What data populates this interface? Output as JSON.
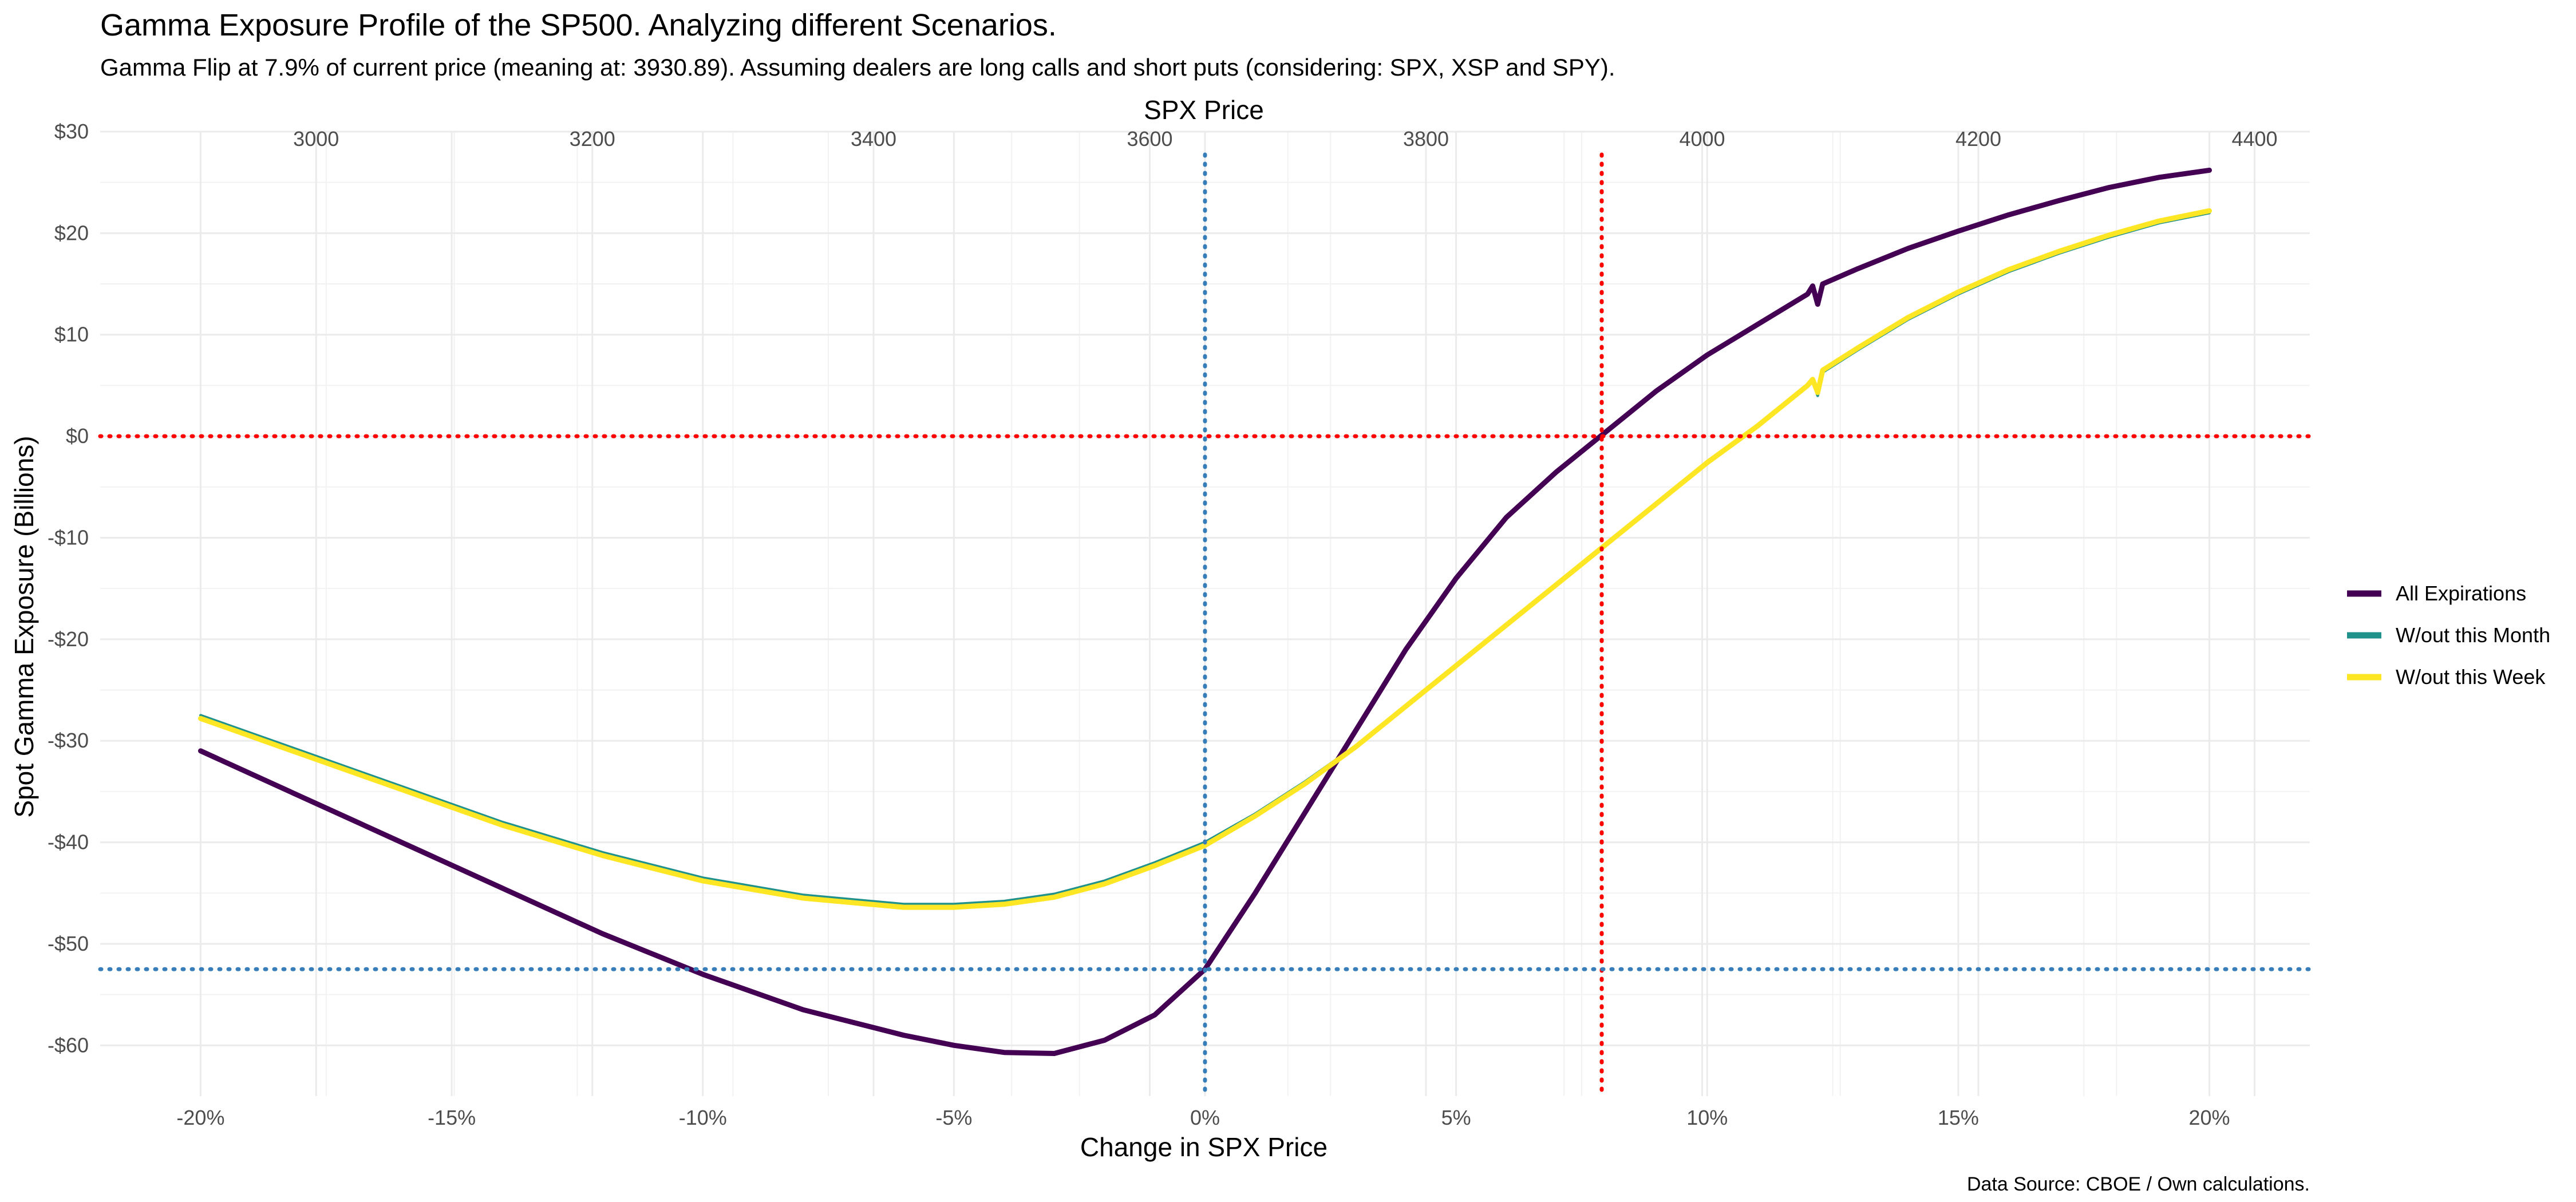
{
  "chart_data": {
    "type": "line",
    "title": "Gamma Exposure Profile of the SP500. Analyzing different Scenarios.",
    "subtitle": "Gamma Flip at 7.9% of current price (meaning at: 3930.89). Assuming dealers are long calls and short puts (considering: SPX, XSP and SPY).",
    "xlabel": "Change in SPX Price",
    "x2label": "SPX Price",
    "ylabel": "Spot Gamma Exposure (Billions)",
    "caption": "Data Source: CBOE / Own calculations.",
    "xlim": [
      -22,
      22
    ],
    "ylim": [
      -65,
      30
    ],
    "x2_ticks": [
      {
        "pct": -17.7,
        "label": "3000"
      },
      {
        "pct": -12.2,
        "label": "3200"
      },
      {
        "pct": -6.6,
        "label": "3400"
      },
      {
        "pct": -1.1,
        "label": "3600"
      },
      {
        "pct": 4.4,
        "label": "3800"
      },
      {
        "pct": 9.9,
        "label": "4000"
      },
      {
        "pct": 15.4,
        "label": "4200"
      },
      {
        "pct": 20.9,
        "label": "4400"
      }
    ],
    "x_ticks": [
      {
        "value": -20,
        "label": "-20%"
      },
      {
        "value": -15,
        "label": "-15%"
      },
      {
        "value": -10,
        "label": "-10%"
      },
      {
        "value": -5,
        "label": "-5%"
      },
      {
        "value": 0,
        "label": "0%"
      },
      {
        "value": 5,
        "label": "5%"
      },
      {
        "value": 10,
        "label": "10%"
      },
      {
        "value": 15,
        "label": "15%"
      },
      {
        "value": 20,
        "label": "20%"
      }
    ],
    "y_ticks": [
      {
        "value": 30,
        "label": "$30"
      },
      {
        "value": 20,
        "label": "$20"
      },
      {
        "value": 10,
        "label": "$10"
      },
      {
        "value": 0,
        "label": "$0"
      },
      {
        "value": -10,
        "label": "-$10"
      },
      {
        "value": -20,
        "label": "-$20"
      },
      {
        "value": -30,
        "label": "-$30"
      },
      {
        "value": -40,
        "label": "-$40"
      },
      {
        "value": -50,
        "label": "-$50"
      },
      {
        "value": -60,
        "label": "-$60"
      }
    ],
    "reference_lines": [
      {
        "axis": "x",
        "value": 0,
        "color": "#377EB8"
      },
      {
        "axis": "x",
        "value": 7.9,
        "color": "#FF0000"
      },
      {
        "axis": "y",
        "value": 0,
        "color": "#FF0000"
      },
      {
        "axis": "y",
        "value": -52.5,
        "color": "#377EB8"
      }
    ],
    "legend_position": "right",
    "series": [
      {
        "name": "All Expirations",
        "color": "#440154",
        "x": [
          -20,
          -18,
          -16,
          -14,
          -12,
          -10,
          -8,
          -6,
          -5,
          -4,
          -3,
          -2,
          -1,
          0,
          1,
          2,
          3,
          4,
          5,
          6,
          7,
          8,
          9,
          10,
          11,
          12,
          12.1,
          12.2,
          12.3,
          13,
          14,
          15,
          16,
          17,
          18,
          19,
          20
        ],
        "y": [
          -31,
          -35.5,
          -40,
          -44.5,
          -49,
          -53,
          -56.5,
          -59,
          -60,
          -60.7,
          -60.8,
          -59.5,
          -57,
          -52.5,
          -45,
          -37,
          -29,
          -21,
          -14,
          -8,
          -3.5,
          0.5,
          4.5,
          8,
          11,
          14,
          14.8,
          13,
          15,
          16.5,
          18.5,
          20.2,
          21.8,
          23.2,
          24.5,
          25.5,
          26.2
        ]
      },
      {
        "name": "W/out this Month",
        "color": "#21918C",
        "x": [
          -20,
          -18,
          -16,
          -14,
          -12,
          -10,
          -8,
          -6,
          -5,
          -4,
          -3,
          -2,
          -1,
          0,
          1,
          2,
          3,
          4,
          5,
          6,
          7,
          8,
          9,
          10,
          11,
          12,
          12.1,
          12.2,
          12.3,
          13,
          14,
          15,
          16,
          17,
          18,
          19,
          20
        ],
        "y": [
          -27.5,
          -31,
          -34.5,
          -38,
          -41,
          -43.5,
          -45.2,
          -46.1,
          -46.1,
          -45.8,
          -45.1,
          -43.8,
          -42,
          -40,
          -37.2,
          -34,
          -30.5,
          -26.5,
          -22.5,
          -18.5,
          -14.5,
          -10.5,
          -6.5,
          -2.5,
          1,
          5,
          5.5,
          4,
          6.3,
          8.5,
          11.5,
          14,
          16.2,
          18,
          19.6,
          21,
          22
        ]
      },
      {
        "name": "W/out this Week",
        "color": "#FDE725",
        "x": [
          -20,
          -18,
          -16,
          -14,
          -12,
          -10,
          -8,
          -6,
          -5,
          -4,
          -3,
          -2,
          -1,
          0,
          1,
          2,
          3,
          4,
          5,
          6,
          7,
          8,
          9,
          10,
          11,
          12,
          12.1,
          12.2,
          12.3,
          13,
          14,
          15,
          16,
          17,
          18,
          19,
          20
        ],
        "y": [
          -27.8,
          -31.3,
          -34.8,
          -38.3,
          -41.3,
          -43.8,
          -45.5,
          -46.4,
          -46.4,
          -46.1,
          -45.4,
          -44.1,
          -42.3,
          -40.3,
          -37.4,
          -34.2,
          -30.6,
          -26.6,
          -22.6,
          -18.6,
          -14.6,
          -10.6,
          -6.6,
          -2.6,
          1,
          5,
          5.6,
          4.3,
          6.5,
          8.7,
          11.7,
          14.2,
          16.4,
          18.2,
          19.8,
          21.2,
          22.2
        ]
      }
    ]
  }
}
